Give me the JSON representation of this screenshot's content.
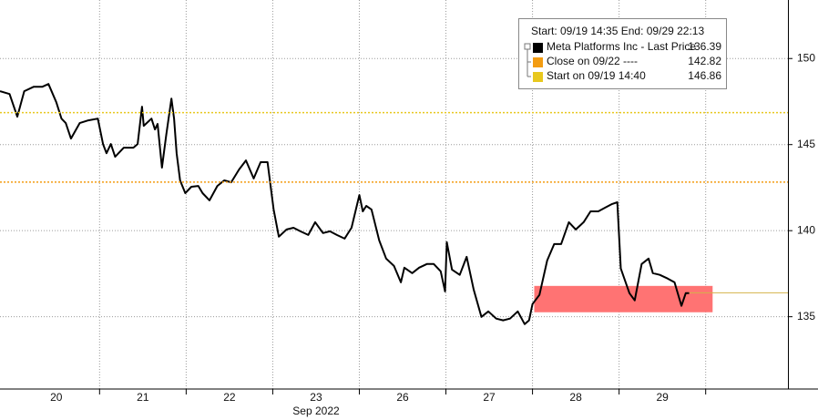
{
  "chart_data": {
    "type": "line",
    "xlabel": "Sep 2022",
    "xlim": [
      0,
      9.1
    ],
    "xticks": [
      {
        "value": 0.65,
        "label": "20"
      },
      {
        "value": 1.65,
        "label": "21"
      },
      {
        "value": 2.65,
        "label": "22"
      },
      {
        "value": 3.65,
        "label": "23"
      },
      {
        "value": 4.65,
        "label": "26"
      },
      {
        "value": 5.65,
        "label": "27"
      },
      {
        "value": 6.65,
        "label": "28"
      },
      {
        "value": 7.65,
        "label": "29"
      }
    ],
    "ylim": [
      130.8,
      153.4
    ],
    "yticks": [
      135,
      140,
      145,
      150
    ],
    "grid": true,
    "legend_title": "Start: 09/19 14:35 End: 09/29 22:13",
    "series": [
      {
        "name": "Meta Platforms Inc - Last Price",
        "color": "#000000",
        "last": 136.39,
        "x": [
          0.0,
          0.11,
          0.2,
          0.28,
          0.39,
          0.49,
          0.56,
          0.65,
          0.71,
          0.76,
          0.82,
          0.92,
          1.02,
          1.13,
          1.19,
          1.23,
          1.28,
          1.33,
          1.43,
          1.54,
          1.59,
          1.64,
          1.66,
          1.75,
          1.79,
          1.82,
          1.87,
          1.92,
          1.98,
          2.01,
          2.04,
          2.08,
          2.14,
          2.21,
          2.29,
          2.34,
          2.42,
          2.51,
          2.59,
          2.67,
          2.76,
          2.84,
          2.93,
          3.01,
          3.09,
          3.16,
          3.22,
          3.31,
          3.39,
          3.47,
          3.56,
          3.64,
          3.73,
          3.81,
          3.89,
          3.98,
          4.06,
          4.15,
          4.19,
          4.23,
          4.29,
          4.38,
          4.46,
          4.55,
          4.63,
          4.67,
          4.76,
          4.84,
          4.93,
          5.01,
          5.09,
          5.14,
          5.16,
          5.22,
          5.31,
          5.39,
          5.47,
          5.56,
          5.64,
          5.73,
          5.81,
          5.89,
          5.98,
          6.06,
          6.11,
          6.15,
          6.23,
          6.32,
          6.4,
          6.48,
          6.57,
          6.65,
          6.74,
          6.82,
          6.91,
          6.99,
          7.07,
          7.13,
          7.17,
          7.27,
          7.33,
          7.41,
          7.49,
          7.54,
          7.62,
          7.71,
          7.79,
          7.87,
          7.92,
          7.96
        ],
        "values": [
          148.1,
          147.94,
          146.62,
          148.1,
          148.36,
          148.36,
          148.52,
          147.46,
          146.51,
          146.25,
          145.35,
          146.25,
          146.41,
          146.51,
          145.03,
          144.5,
          145.03,
          144.29,
          144.82,
          144.82,
          145.03,
          147.2,
          146.09,
          146.51,
          145.88,
          146.2,
          143.66,
          145.56,
          147.67,
          146.51,
          144.5,
          142.92,
          142.18,
          142.55,
          142.6,
          142.18,
          141.76,
          142.6,
          142.92,
          142.81,
          143.55,
          144.08,
          143.03,
          143.98,
          143.98,
          141.23,
          139.65,
          140.07,
          140.17,
          139.96,
          139.75,
          140.49,
          139.86,
          139.96,
          139.75,
          139.54,
          140.17,
          142.07,
          141.12,
          141.44,
          141.23,
          139.43,
          138.38,
          137.95,
          137.0,
          137.85,
          137.53,
          137.85,
          138.06,
          138.06,
          137.64,
          136.47,
          139.33,
          137.74,
          137.43,
          138.48,
          136.58,
          134.99,
          135.31,
          134.89,
          134.79,
          134.89,
          135.31,
          134.57,
          134.79,
          135.74,
          136.27,
          138.27,
          139.22,
          139.22,
          140.49,
          140.07,
          140.49,
          141.12,
          141.12,
          141.34,
          141.55,
          141.65,
          137.8,
          136.37,
          135.95,
          138.06,
          138.38,
          137.53,
          137.43,
          137.22,
          137.0,
          135.63,
          136.37,
          136.37
        ]
      },
      {
        "name": "Close on 09/22 ----",
        "color": "#f39c12",
        "value": 142.82
      },
      {
        "name": "Start on 09/19 14:40",
        "color": "#e8c81e",
        "value": 146.86
      }
    ],
    "highlight": {
      "color": "#ff7373",
      "x": [
        6.17,
        8.23
      ],
      "y": [
        135.26,
        136.79
      ]
    }
  }
}
